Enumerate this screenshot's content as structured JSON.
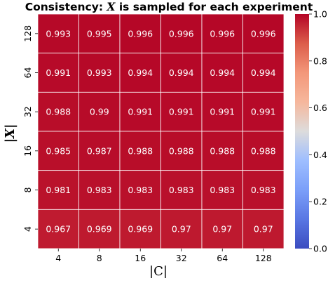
{
  "chart_data": {
    "type": "heatmap",
    "title_prefix": "Consistency: ",
    "title_var": "X",
    "title_suffix": " is sampled for each experiment",
    "xlabel": "|C|",
    "ylabel": "|X|",
    "x_categories": [
      "4",
      "8",
      "16",
      "32",
      "64",
      "128"
    ],
    "y_categories": [
      "128",
      "64",
      "32",
      "16",
      "8",
      "4"
    ],
    "values": [
      [
        0.993,
        0.995,
        0.996,
        0.996,
        0.996,
        0.996
      ],
      [
        0.991,
        0.993,
        0.994,
        0.994,
        0.994,
        0.994
      ],
      [
        0.988,
        0.99,
        0.991,
        0.991,
        0.991,
        0.991
      ],
      [
        0.985,
        0.987,
        0.988,
        0.988,
        0.988,
        0.988
      ],
      [
        0.981,
        0.983,
        0.983,
        0.983,
        0.983,
        0.983
      ],
      [
        0.967,
        0.969,
        0.969,
        0.97,
        0.97,
        0.97
      ]
    ],
    "value_labels": [
      [
        "0.993",
        "0.995",
        "0.996",
        "0.996",
        "0.996",
        "0.996"
      ],
      [
        "0.991",
        "0.993",
        "0.994",
        "0.994",
        "0.994",
        "0.994"
      ],
      [
        "0.988",
        "0.99",
        "0.991",
        "0.991",
        "0.991",
        "0.991"
      ],
      [
        "0.985",
        "0.987",
        "0.988",
        "0.988",
        "0.988",
        "0.988"
      ],
      [
        "0.981",
        "0.983",
        "0.983",
        "0.983",
        "0.983",
        "0.983"
      ],
      [
        "0.967",
        "0.969",
        "0.969",
        "0.97",
        "0.97",
        "0.97"
      ]
    ],
    "colorbar": {
      "colormap": "coolwarm",
      "vmin": 0.0,
      "vmax": 1.0,
      "ticks": [
        0.0,
        0.2,
        0.4,
        0.6,
        0.8,
        1.0
      ],
      "tick_labels": [
        "0.0",
        "0.2",
        "0.4",
        "0.6",
        "0.8",
        "1.0"
      ]
    },
    "grid_line_color": "#ffffff"
  }
}
